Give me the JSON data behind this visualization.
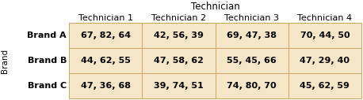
{
  "title": "Technician",
  "col_header": [
    "Technician 1",
    "Technician 2",
    "Technician 3",
    "Technician 4"
  ],
  "row_header": [
    "Brand A",
    "Brand B",
    "Brand C"
  ],
  "row_label": "Brand",
  "cells": [
    [
      "67, 82, 64",
      "42, 56, 39",
      "69, 47, 38",
      "70, 44, 50"
    ],
    [
      "44, 62, 55",
      "47, 58, 62",
      "55, 45, 66",
      "47, 29, 40"
    ],
    [
      "47, 36, 68",
      "39, 74, 51",
      "74, 80, 70",
      "45, 62, 59"
    ]
  ],
  "cell_bg": "#f5e6c8",
  "border_color": "#c8a864",
  "text_color": "#000000",
  "title_fontsize": 8.5,
  "header_fontsize": 8,
  "cell_fontsize": 8,
  "row_label_fontsize": 7.5,
  "fig_width": 4.58,
  "fig_height": 1.27,
  "dpi": 100
}
